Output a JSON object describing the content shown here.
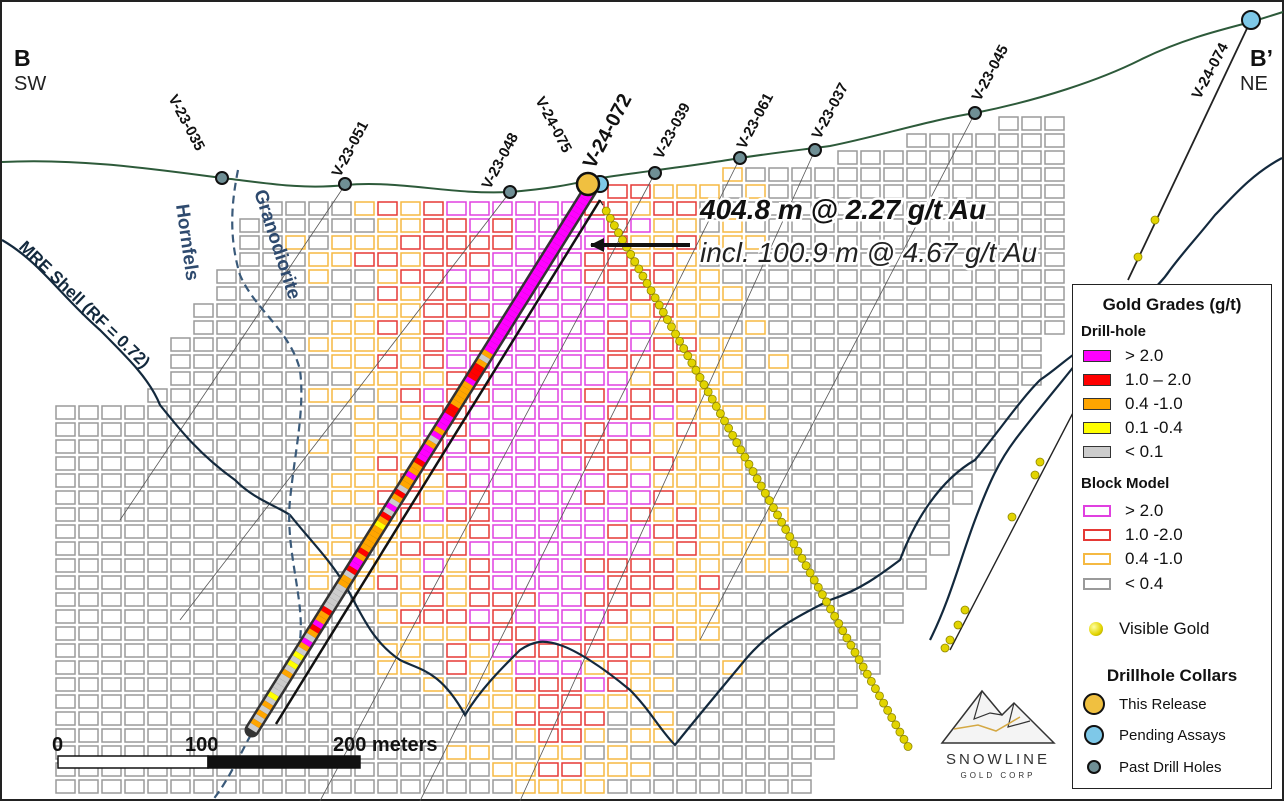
{
  "section": {
    "end_left": "B",
    "end_left_dir": "SW",
    "end_right": "B’",
    "end_right_dir": "NE",
    "shell_label": "MRE Shell (RF = 0.72)",
    "lithology": [
      "Hornfels",
      "Granodiorite"
    ]
  },
  "drillholes": [
    {
      "id": "V-23-035"
    },
    {
      "id": "V-23-051"
    },
    {
      "id": "V-23-048"
    },
    {
      "id": "V-24-075"
    },
    {
      "id": "V-24-072"
    },
    {
      "id": "V-23-039"
    },
    {
      "id": "V-23-061"
    },
    {
      "id": "V-23-037"
    },
    {
      "id": "V-23-045"
    },
    {
      "id": "V-24-074"
    }
  ],
  "intercept": {
    "main": "404.8 m @ 2.27 g/t Au",
    "included": "incl. 100.9 m @ 4.67 g/t Au"
  },
  "scale_bar": {
    "ticks": [
      "0",
      "100",
      "200 meters"
    ]
  },
  "legend": {
    "title": "Gold Grades (g/t)",
    "drillhole_title": "Drill-hole",
    "drillhole_items": [
      {
        "label": "> 2.0",
        "color": "#ff00ff"
      },
      {
        "label": "1.0 – 2.0",
        "color": "#ff0000"
      },
      {
        "label": "0.4 -1.0",
        "color": "#ffa500"
      },
      {
        "label": "0.1 -0.4",
        "color": "#ffff00"
      },
      {
        "label": "< 0.1",
        "color": "#cccccc"
      }
    ],
    "block_title": "Block Model",
    "block_items": [
      {
        "label": "> 2.0",
        "color": "#e040e0"
      },
      {
        "label": "1.0 -2.0",
        "color": "#e53935"
      },
      {
        "label": "0.4 -1.0",
        "color": "#f5b942"
      },
      {
        "label": "< 0.4",
        "color": "#9a9a9a"
      }
    ],
    "visible_gold": "Visible Gold",
    "collars_title": "Drillhole Collars",
    "collar_items": [
      {
        "label": "This Release",
        "color": "#f0c040"
      },
      {
        "label": "Pending Assays",
        "color": "#7ec8e8"
      },
      {
        "label": "Past Drill Holes",
        "color": "#6f8f95"
      }
    ]
  },
  "logo": {
    "name": "SNOWLINE",
    "sub": "GOLD CORP"
  }
}
